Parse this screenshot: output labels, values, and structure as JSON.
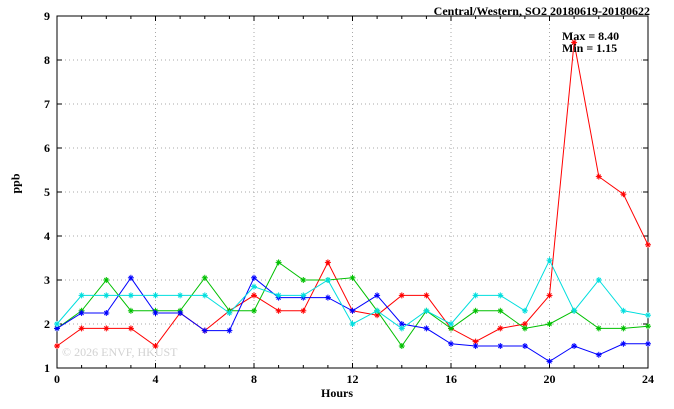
{
  "title": "Central/Western, SO2 20180619-20180622",
  "annotation": {
    "max_label": "Max = 8.40",
    "min_label": "Min = 1.15"
  },
  "watermark": "© 2026 ENVF, HKUST",
  "chart_data": {
    "type": "line",
    "title": "Central/Western, SO2 20180619-20180622",
    "xlabel": "Hours",
    "ylabel": "ppb",
    "xlim": [
      0,
      24
    ],
    "ylim": [
      1,
      9
    ],
    "x_major_ticks": [
      0,
      4,
      8,
      12,
      16,
      20,
      24
    ],
    "y_ticks": [
      1,
      2,
      3,
      4,
      5,
      6,
      7,
      8,
      9
    ],
    "grid": true,
    "legend": "none",
    "marker": "asterisk",
    "x": [
      0,
      1,
      2,
      3,
      4,
      5,
      6,
      7,
      8,
      9,
      10,
      11,
      12,
      13,
      14,
      15,
      16,
      17,
      18,
      19,
      20,
      21,
      22,
      23,
      24
    ],
    "series": [
      {
        "name": "red",
        "color": "#ff0000",
        "values": [
          1.5,
          1.9,
          1.9,
          1.9,
          1.5,
          2.25,
          1.85,
          2.3,
          2.65,
          2.3,
          2.3,
          3.4,
          2.3,
          2.2,
          2.65,
          2.65,
          1.9,
          1.6,
          1.9,
          2.0,
          2.65,
          8.4,
          5.35,
          4.95,
          3.8
        ]
      },
      {
        "name": "green",
        "color": "#00c000",
        "values": [
          1.9,
          2.3,
          3.0,
          2.3,
          2.3,
          2.3,
          3.05,
          2.3,
          2.3,
          3.4,
          3.0,
          3.0,
          3.05,
          2.3,
          1.5,
          2.3,
          1.9,
          2.3,
          2.3,
          1.9,
          2.0,
          2.3,
          1.9,
          1.9,
          1.95
        ]
      },
      {
        "name": "blue",
        "color": "#0000ff",
        "values": [
          1.9,
          2.25,
          2.25,
          3.05,
          2.25,
          2.25,
          1.85,
          1.85,
          3.05,
          2.6,
          2.6,
          2.6,
          2.3,
          2.65,
          2.0,
          1.9,
          1.55,
          1.5,
          1.5,
          1.5,
          1.15,
          1.5,
          1.3,
          1.55,
          1.55
        ]
      },
      {
        "name": "cyan",
        "color": "#00dede",
        "values": [
          2.0,
          2.65,
          2.65,
          2.65,
          2.65,
          2.65,
          2.65,
          2.25,
          2.85,
          2.65,
          2.65,
          3.0,
          2.0,
          2.3,
          1.9,
          2.3,
          2.0,
          2.65,
          2.65,
          2.3,
          3.45,
          2.3,
          3.0,
          2.3,
          2.2
        ]
      }
    ]
  }
}
